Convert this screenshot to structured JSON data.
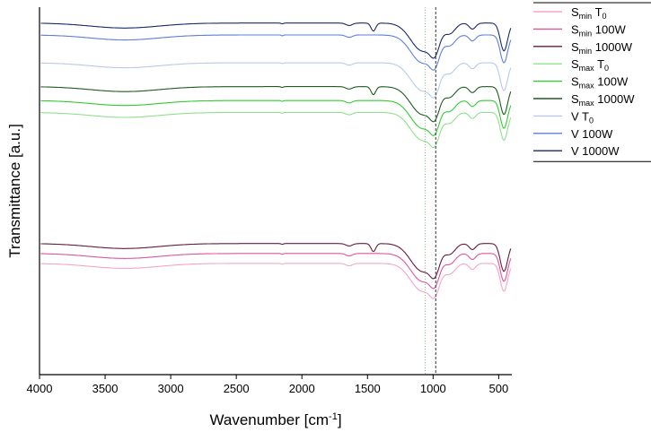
{
  "chart_data": {
    "type": "line",
    "xlabel": {
      "main": "Wavenumber [cm",
      "sup": "-1",
      "end": "]"
    },
    "ylabel": "Transmittance [a.u.]",
    "xlim": [
      4000,
      400
    ],
    "x_ticks": [
      4000,
      3500,
      3000,
      2500,
      2000,
      1500,
      1000,
      500
    ],
    "x_tick_labels": [
      "4000",
      "3500",
      "3000",
      "2500",
      "2000",
      "1500",
      "1000",
      "500"
    ],
    "y_ticks": false,
    "grid": false,
    "legend_position": "top-right",
    "reference_lines": [
      {
        "x": 980,
        "style": "dashed",
        "color": "#333333"
      },
      {
        "x": 1060,
        "style": "dotted",
        "color": "#8fbf8f"
      }
    ],
    "series": [
      {
        "name": "S_min T_0",
        "legend": {
          "base": "S",
          "sub": "min",
          "rest": " T",
          "sub2": "0",
          "tail": ""
        },
        "color": "#f4a6c8",
        "baseline": 0.56,
        "profile": "v"
      },
      {
        "name": "S_min 100W",
        "legend": {
          "base": "S",
          "sub": "min",
          "rest": " 100W",
          "sub2": "",
          "tail": ""
        },
        "color": "#e0559c",
        "baseline": 0.61,
        "profile": "v"
      },
      {
        "name": "S_min 1000W",
        "legend": {
          "base": "S",
          "sub": "min",
          "rest": " 1000W",
          "sub2": "",
          "tail": ""
        },
        "color": "#6b1a3c",
        "baseline": 0.66,
        "profile": "w"
      },
      {
        "name": "S_max T_0",
        "legend": {
          "base": "S",
          "sub": "max",
          "rest": " T",
          "sub2": "0",
          "tail": ""
        },
        "color": "#8fe08f",
        "baseline": 1.32,
        "profile": "v"
      },
      {
        "name": "S_max 100W",
        "legend": {
          "base": "S",
          "sub": "max",
          "rest": " 100W",
          "sub2": "",
          "tail": ""
        },
        "color": "#33cc33",
        "baseline": 1.38,
        "profile": "v"
      },
      {
        "name": "S_max 1000W",
        "legend": {
          "base": "S",
          "sub": "max",
          "rest": " 1000W",
          "sub2": "",
          "tail": ""
        },
        "color": "#1f5c1f",
        "baseline": 1.45,
        "profile": "w"
      },
      {
        "name": "V T_0",
        "legend": {
          "base": "V T",
          "sub": "0",
          "rest": "",
          "sub2": "",
          "tail": ""
        },
        "color": "#b8c8ee",
        "baseline": 1.57,
        "profile": "v"
      },
      {
        "name": "V 100W",
        "legend": {
          "base": "V 100W",
          "sub": "",
          "rest": "",
          "sub2": "",
          "tail": ""
        },
        "color": "#5c7ee0",
        "baseline": 1.71,
        "profile": "v"
      },
      {
        "name": "V 1000W",
        "legend": {
          "base": "V 1000W",
          "sub": "",
          "rest": "",
          "sub2": "",
          "tail": ""
        },
        "color": "#1a2a6b",
        "baseline": 1.77,
        "profile": "w"
      }
    ],
    "ylim": [
      0,
      1.85
    ]
  }
}
